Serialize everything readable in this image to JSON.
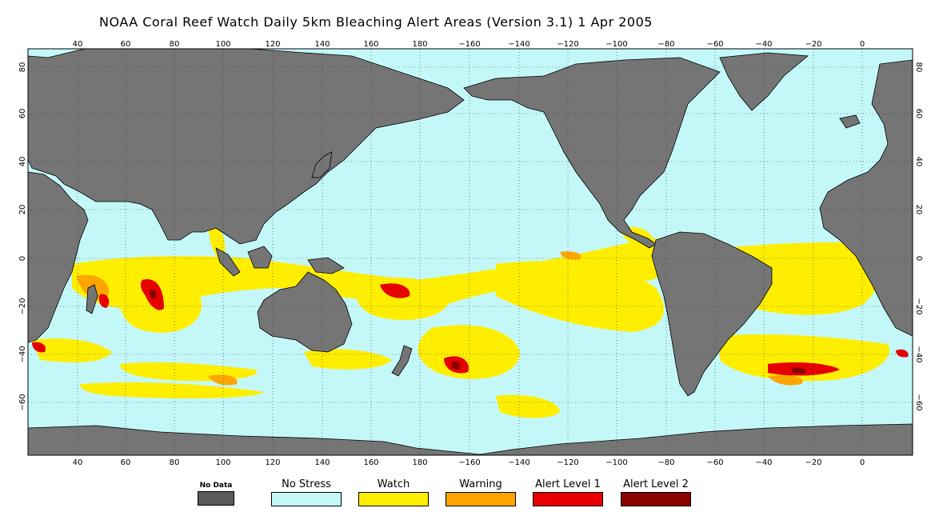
{
  "title": "NOAA Coral Reef Watch Daily 5km Bleaching Alert Areas (Version 3.1)   1 Apr 2005",
  "map": {
    "lon_labels": [
      "40",
      "60",
      "80",
      "100",
      "120",
      "140",
      "160",
      "180",
      "−160",
      "−140",
      "−120",
      "−100",
      "−80",
      "−60",
      "−40",
      "−20",
      "0"
    ],
    "lat_labels": [
      "80",
      "60",
      "40",
      "20",
      "0",
      "−20",
      "−40",
      "−60"
    ],
    "colors": {
      "ocean": "#c4f8f8",
      "land": "#757575",
      "watch": "#ffee00",
      "warning": "#ffa500",
      "alert1": "#e60000",
      "alert2": "#8b0000"
    }
  },
  "legend": [
    {
      "label": "No Data",
      "color": "#5a5a5a"
    },
    {
      "label": "No Stress",
      "color": "#c4f8f8"
    },
    {
      "label": "Watch",
      "color": "#ffee00"
    },
    {
      "label": "Warning",
      "color": "#ffa500"
    },
    {
      "label": "Alert Level 1",
      "color": "#e60000"
    },
    {
      "label": "Alert Level 2",
      "color": "#8b0000"
    }
  ]
}
